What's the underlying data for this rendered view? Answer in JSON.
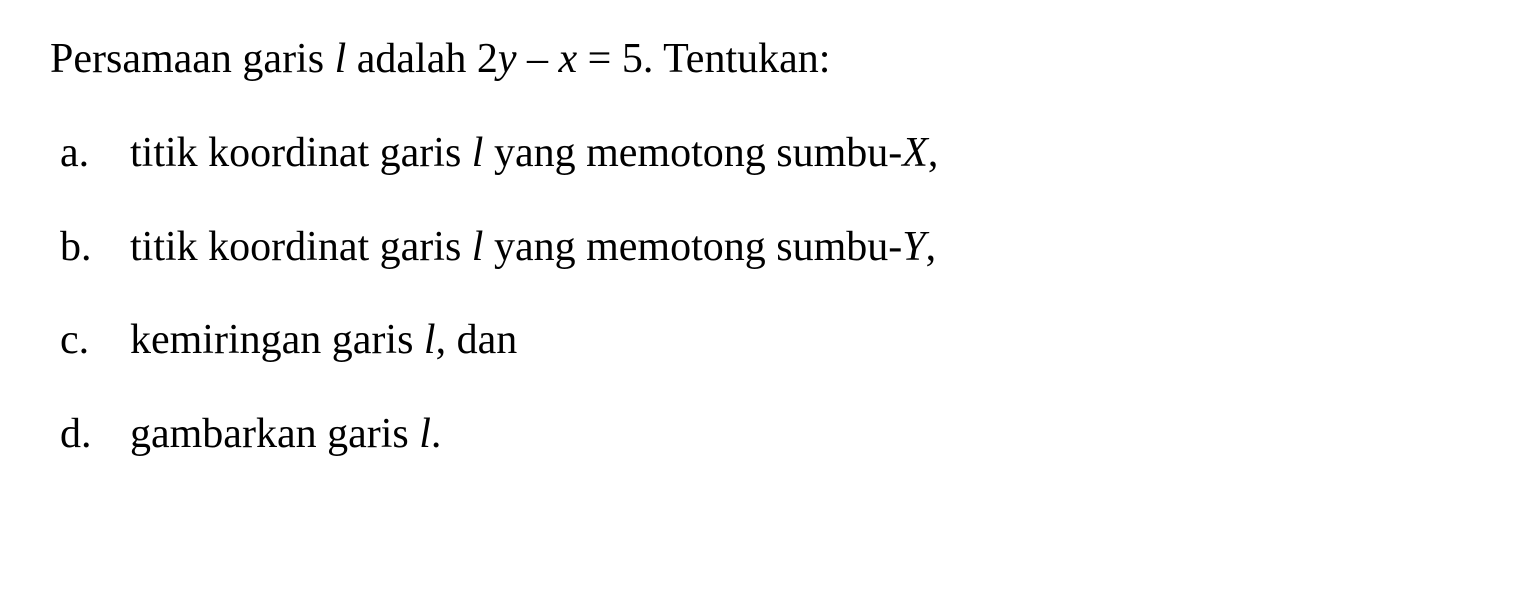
{
  "intro": {
    "prefix": "Persamaan garis ",
    "variable1": "l",
    "middle": " adalah 2",
    "y": "y",
    "minus": " – ",
    "x": "x",
    "equals": " = 5. Tentukan:"
  },
  "items": [
    {
      "label": "a.",
      "prefix": "titik koordinat garis ",
      "var": "l",
      "middle": " yang memotong sumbu-",
      "axis": "X",
      "suffix": ","
    },
    {
      "label": "b.",
      "prefix": "titik koordinat garis ",
      "var": "l",
      "middle": " yang memotong sumbu-",
      "axis": "Y",
      "suffix": ","
    },
    {
      "label": "c.",
      "prefix": "kemiringan garis ",
      "var": "l",
      "middle": "",
      "axis": "",
      "suffix": ", dan"
    },
    {
      "label": "d.",
      "prefix": "gambarkan garis ",
      "var": "l",
      "middle": "",
      "axis": "",
      "suffix": "."
    }
  ],
  "styling": {
    "background_color": "#ffffff",
    "text_color": "#000000",
    "font_family": "Times New Roman",
    "font_size_pt": 32,
    "line_spacing": 1.4
  }
}
